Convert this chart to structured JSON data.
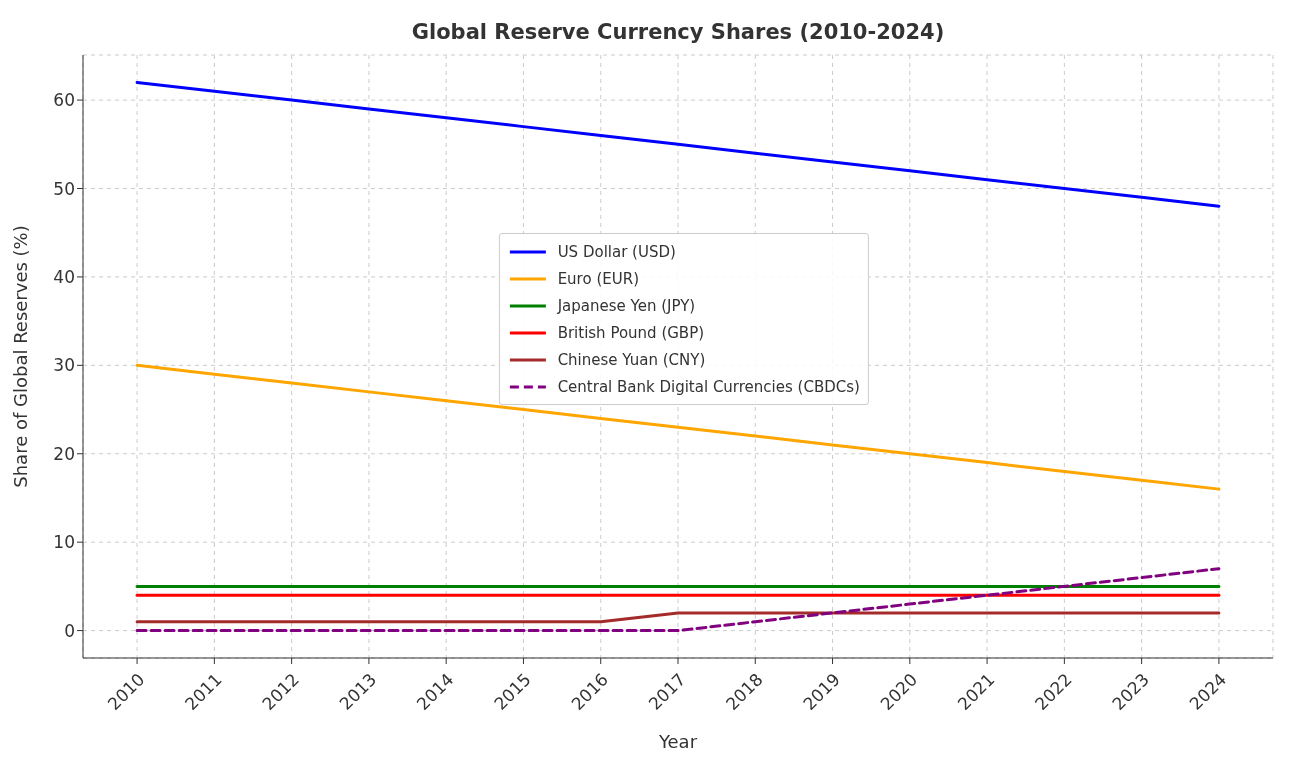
{
  "chart_data": {
    "type": "line",
    "title": "Global Reserve Currency Shares (2010-2024)",
    "xlabel": "Year",
    "ylabel": "Share of Global Reserves (%)",
    "x": [
      2010,
      2011,
      2012,
      2013,
      2014,
      2015,
      2016,
      2017,
      2018,
      2019,
      2020,
      2021,
      2022,
      2023,
      2024
    ],
    "series": [
      {
        "name": "US Dollar (USD)",
        "color": "#0000ff",
        "values": [
          62,
          61,
          60,
          59,
          58,
          57,
          56,
          55,
          54,
          53,
          52,
          51,
          50,
          49,
          48
        ]
      },
      {
        "name": "Euro (EUR)",
        "color": "#ffa500",
        "values": [
          30,
          29,
          28,
          27,
          26,
          25,
          24,
          23,
          22,
          21,
          20,
          19,
          18,
          17,
          16
        ]
      },
      {
        "name": "Japanese Yen (JPY)",
        "color": "#008000",
        "values": [
          5,
          5,
          5,
          5,
          5,
          5,
          5,
          5,
          5,
          5,
          5,
          5,
          5,
          5,
          5
        ]
      },
      {
        "name": "British Pound (GBP)",
        "color": "#ff0000",
        "values": [
          4,
          4,
          4,
          4,
          4,
          4,
          4,
          4,
          4,
          4,
          4,
          4,
          4,
          4,
          4
        ]
      },
      {
        "name": "Chinese Yuan (CNY)",
        "color": "#a52a2a",
        "values": [
          1,
          1,
          1,
          1,
          1,
          1,
          1,
          2,
          2,
          2,
          2,
          2,
          2,
          2,
          2
        ]
      },
      {
        "name": "Central Bank Digital Currencies (CBDCs)",
        "color": "#800080",
        "line_style": "dashed",
        "values": [
          0,
          0,
          0,
          0,
          0,
          0,
          0,
          0,
          1,
          2,
          3,
          4,
          5,
          6,
          7
        ]
      }
    ],
    "xlim": [
      2009.3,
      2024.7
    ],
    "xticks": [
      2010,
      2011,
      2012,
      2013,
      2014,
      2015,
      2016,
      2017,
      2018,
      2019,
      2020,
      2021,
      2022,
      2023,
      2024
    ],
    "ylim": [
      -3.1,
      65.1
    ],
    "yticks": [
      0,
      10,
      20,
      30,
      40,
      50,
      60
    ],
    "grid": true,
    "legend": "center",
    "marker": "none",
    "line_style": "solid"
  }
}
